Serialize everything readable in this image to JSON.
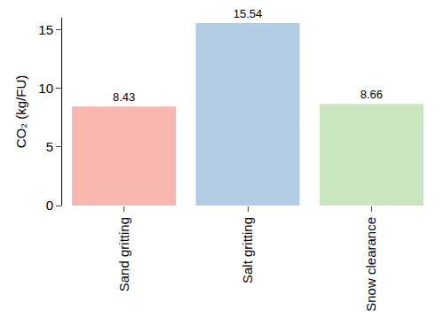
{
  "chart_data": {
    "type": "bar",
    "categories": [
      "Sand gritting",
      "Salt gritting",
      "Snow clearance"
    ],
    "values": [
      8.43,
      15.54,
      8.66
    ],
    "colors": [
      "#f7b6b0",
      "#b3cce6",
      "#c9e6c1"
    ],
    "y_label": "CO₂ (kg/FU)",
    "ylim": [
      0,
      16
    ],
    "yticks": [
      0,
      5,
      10,
      15
    ],
    "grid": false,
    "data_labels": true
  }
}
